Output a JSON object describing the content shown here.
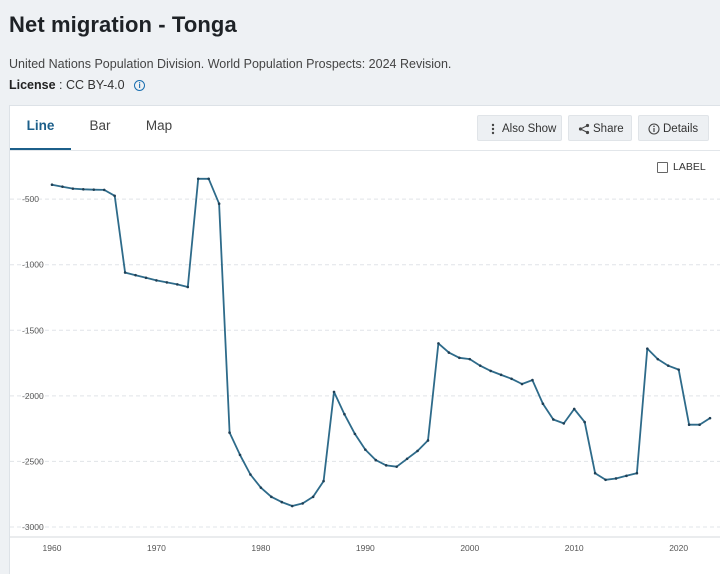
{
  "header": {
    "title": "Net migration - Tonga",
    "source": "United Nations Population Division. World Population Prospects: 2024 Revision.",
    "license_label": "License",
    "license_separator": ":",
    "license_value": "CC BY-4.0",
    "info_icon": "info-icon"
  },
  "tabs": [
    {
      "label": "Line",
      "active": true
    },
    {
      "label": "Bar",
      "active": false
    },
    {
      "label": "Map",
      "active": false
    }
  ],
  "toolbar": {
    "also_show": {
      "label": "Also Show",
      "icon": "vertical-dots-icon"
    },
    "share": {
      "label": "Share",
      "icon": "share-icon"
    },
    "details": {
      "label": "Details",
      "icon": "info-circle-icon"
    }
  },
  "label_toggle": {
    "label": "LABEL",
    "checked": false
  },
  "colors": {
    "line": "#2e6b8a",
    "grid": "#e0e4e8",
    "accent": "#1c5f8a"
  },
  "chart_data": {
    "type": "line",
    "title": "Net migration - Tonga",
    "xlabel": "",
    "ylabel": "",
    "xlim": [
      1960,
      2023
    ],
    "ylim": [
      -3000,
      -300
    ],
    "yticks": [
      -500,
      -1000,
      -1500,
      -2000,
      -2500,
      -3000
    ],
    "ytick_labels": [
      "-500",
      "-1000",
      "-1500",
      "-2000",
      "-2500",
      "-3000"
    ],
    "xticks": [
      1960,
      1970,
      1980,
      1990,
      2000,
      2010,
      2020
    ],
    "xtick_labels": [
      "1960",
      "1970",
      "1980",
      "1990",
      "2000",
      "2010",
      "2020"
    ],
    "grid": true,
    "series": [
      {
        "name": "Net migration",
        "x": [
          1960,
          1961,
          1962,
          1963,
          1964,
          1965,
          1966,
          1967,
          1968,
          1969,
          1970,
          1971,
          1972,
          1973,
          1974,
          1975,
          1976,
          1977,
          1978,
          1979,
          1980,
          1981,
          1982,
          1983,
          1984,
          1985,
          1986,
          1987,
          1988,
          1989,
          1990,
          1991,
          1992,
          1993,
          1994,
          1995,
          1996,
          1997,
          1998,
          1999,
          2000,
          2001,
          2002,
          2003,
          2004,
          2005,
          2006,
          2007,
          2008,
          2009,
          2010,
          2011,
          2012,
          2013,
          2014,
          2015,
          2016,
          2017,
          2018,
          2019,
          2020,
          2021,
          2022,
          2023
        ],
        "values": [
          -390,
          -405,
          -420,
          -425,
          -428,
          -430,
          -475,
          -1060,
          -1080,
          -1100,
          -1120,
          -1135,
          -1150,
          -1170,
          -345,
          -345,
          -535,
          -2280,
          -2450,
          -2600,
          -2700,
          -2770,
          -2810,
          -2840,
          -2820,
          -2770,
          -2650,
          -1970,
          -2140,
          -2290,
          -2410,
          -2490,
          -2530,
          -2540,
          -2480,
          -2420,
          -2340,
          -1600,
          -1670,
          -1710,
          -1720,
          -1770,
          -1810,
          -1840,
          -1870,
          -1910,
          -1880,
          -2060,
          -2180,
          -2210,
          -2100,
          -2200,
          -2590,
          -2640,
          -2630,
          -2610,
          -2590,
          -1640,
          -1720,
          -1770,
          -1800,
          -2220,
          -2220,
          -2170
        ]
      }
    ]
  }
}
